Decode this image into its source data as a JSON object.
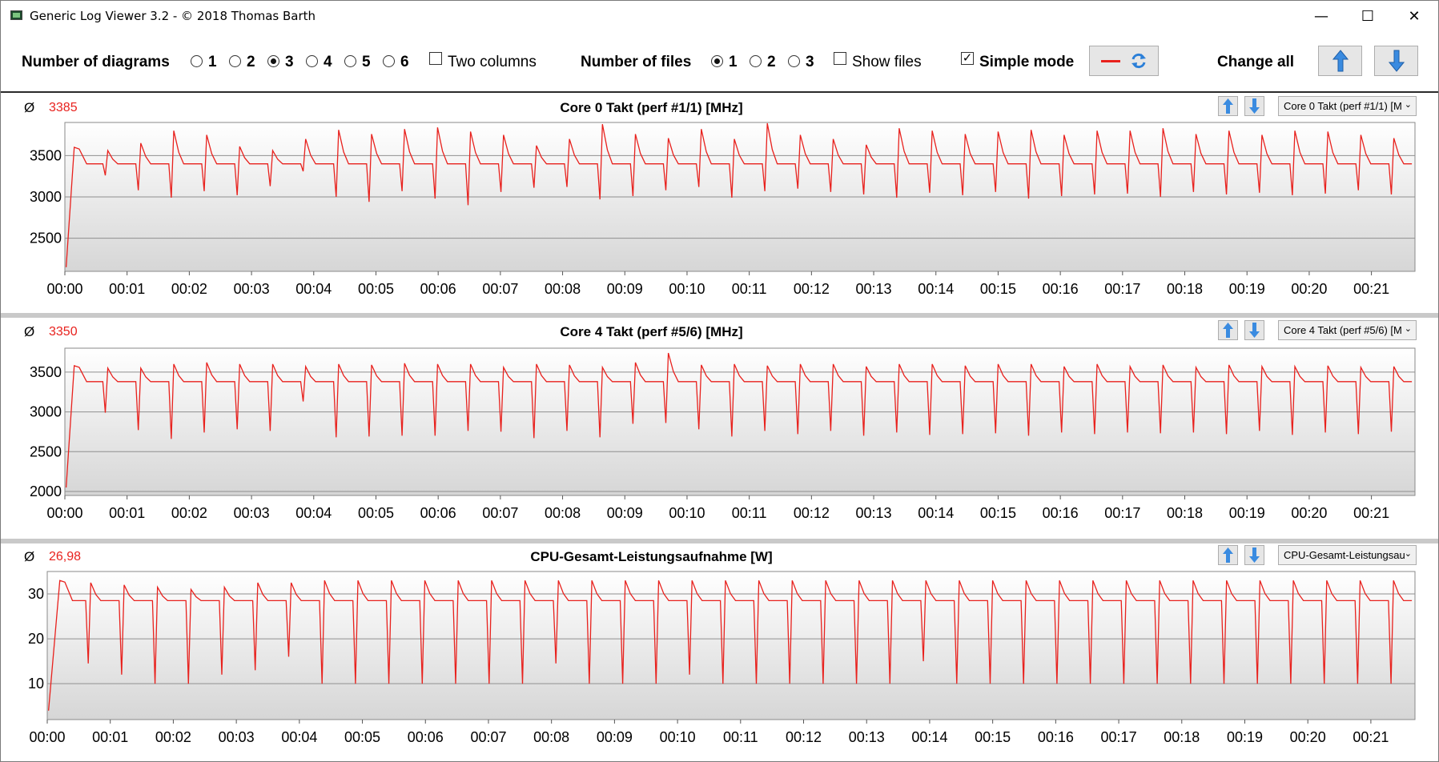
{
  "window": {
    "title": "Generic Log Viewer 3.2 - © 2018 Thomas Barth",
    "minimize": "—",
    "maximize": "☐",
    "close": "✕"
  },
  "toolbar": {
    "diagrams_label": "Number of diagrams",
    "diagram_options": [
      "1",
      "2",
      "3",
      "4",
      "5",
      "6"
    ],
    "diagram_selected": "3",
    "two_columns_label": "Two columns",
    "two_columns_checked": false,
    "files_label": "Number of files",
    "file_options": [
      "1",
      "2",
      "3"
    ],
    "file_selected": "1",
    "show_files_label": "Show files",
    "show_files_checked": false,
    "simple_mode_label": "Simple mode",
    "simple_mode_checked": true,
    "change_all_label": "Change all"
  },
  "colors": {
    "series": "#e8211d",
    "accent_blue": "#3a8be0"
  },
  "time_ticks": [
    "00:00",
    "00:01",
    "00:02",
    "00:03",
    "00:04",
    "00:05",
    "00:06",
    "00:07",
    "00:08",
    "00:09",
    "00:10",
    "00:11",
    "00:12",
    "00:13",
    "00:14",
    "00:15",
    "00:16",
    "00:17",
    "00:18",
    "00:19",
    "00:20",
    "00:21"
  ],
  "panels": [
    {
      "avg_symbol": "Ø",
      "avg_value": "3385",
      "title": "Core 0 Takt (perf #1/1) [MHz]",
      "selector": "Core 0 Takt (perf #1/1) [M"
    },
    {
      "avg_symbol": "Ø",
      "avg_value": "3350",
      "title": "Core 4 Takt (perf #5/6) [MHz]",
      "selector": "Core 4 Takt (perf #5/6) [M"
    },
    {
      "avg_symbol": "Ø",
      "avg_value": "26,98",
      "title": "CPU-Gesamt-Leistungsaufnahme [W]",
      "selector": "CPU-Gesamt-Leistungsau"
    }
  ],
  "chart_data": [
    {
      "type": "line",
      "title": "Core 0 Takt (perf #1/1) [MHz]",
      "x_unit": "minutes",
      "xlim": [
        0,
        21.7
      ],
      "ylim": [
        2100,
        3900
      ],
      "yticks": [
        2500,
        3000,
        3500
      ],
      "base": 3400,
      "start": 2150,
      "ramp_end": 0.15,
      "first_peak": 3600,
      "cycle_minutes": 0.53,
      "phase": 0.65,
      "peaks": [
        3560,
        3650,
        3800,
        3750,
        3610,
        3560,
        3700,
        3810,
        3760,
        3820,
        3840,
        3790,
        3750,
        3620,
        3700,
        3880,
        3760,
        3710,
        3820,
        3700,
        3890,
        3750,
        3700,
        3630,
        3830,
        3800,
        3760,
        3790,
        3810,
        3750,
        3800,
        3800,
        3830,
        3760,
        3800,
        3750,
        3800,
        3790,
        3750,
        3710,
        3800
      ],
      "dips": [
        3260,
        3080,
        2990,
        3070,
        3020,
        3130,
        3310,
        3000,
        2940,
        3070,
        2980,
        2900,
        3060,
        3110,
        3120,
        2970,
        3010,
        3080,
        3120,
        2990,
        3070,
        3100,
        3060,
        3030,
        2990,
        3050,
        3020,
        3060,
        2980,
        3010,
        3030,
        3040,
        3000,
        3060,
        3030,
        3050,
        3020,
        3040,
        3080,
        3030,
        3100
      ],
      "series": [
        {
          "name": "Core 0 Takt (perf #1/1) [MHz]"
        }
      ]
    },
    {
      "type": "line",
      "title": "Core 4 Takt (perf #5/6) [MHz]",
      "x_unit": "minutes",
      "xlim": [
        0,
        21.7
      ],
      "ylim": [
        1950,
        3800
      ],
      "yticks": [
        2000,
        2500,
        3000,
        3500
      ],
      "base": 3380,
      "start": 2050,
      "ramp_end": 0.15,
      "first_peak": 3580,
      "cycle_minutes": 0.53,
      "phase": 0.65,
      "peaks": [
        3550,
        3550,
        3600,
        3620,
        3600,
        3600,
        3570,
        3600,
        3590,
        3610,
        3600,
        3600,
        3560,
        3600,
        3590,
        3560,
        3620,
        3740,
        3590,
        3600,
        3580,
        3600,
        3600,
        3570,
        3600,
        3600,
        3580,
        3600,
        3600,
        3570,
        3600,
        3570,
        3590,
        3560,
        3590,
        3570,
        3570,
        3580,
        3560,
        3570,
        3590
      ],
      "dips": [
        2990,
        2770,
        2660,
        2740,
        2780,
        2760,
        3130,
        2680,
        2690,
        2700,
        2700,
        2760,
        2750,
        2670,
        2760,
        2680,
        2850,
        2860,
        2780,
        2690,
        2760,
        2720,
        2760,
        2700,
        2740,
        2710,
        2720,
        2730,
        2700,
        2740,
        2720,
        2740,
        2730,
        2740,
        2720,
        2760,
        2710,
        2740,
        2720,
        2750,
        2900
      ],
      "series": [
        {
          "name": "Core 4 Takt (perf #5/6) [MHz]"
        }
      ]
    },
    {
      "type": "line",
      "title": "CPU-Gesamt-Leistungsaufnahme [W]",
      "x_unit": "minutes",
      "xlim": [
        0,
        21.7
      ],
      "ylim": [
        2,
        35
      ],
      "yticks": [
        10,
        20,
        30
      ],
      "base": 28.5,
      "start": 4,
      "ramp_end": 0.2,
      "first_peak": 33,
      "cycle_minutes": 0.53,
      "phase": 0.65,
      "peaks": [
        32.5,
        32,
        31.5,
        31,
        31.5,
        32.5,
        32.5,
        33,
        33,
        33,
        33,
        33,
        33,
        33,
        33,
        33,
        33,
        33,
        33,
        33,
        33,
        33,
        33,
        33,
        33,
        33,
        33,
        33,
        33,
        33,
        33,
        33,
        33,
        33,
        33,
        33,
        33,
        33,
        33,
        33,
        33
      ],
      "dips": [
        14.5,
        12,
        10,
        10,
        12,
        13,
        16,
        10,
        10,
        10,
        10,
        10,
        10,
        10,
        14.5,
        10,
        10,
        10,
        12,
        10,
        10,
        10,
        10,
        10,
        10,
        15,
        10,
        10,
        10,
        10,
        10,
        10,
        10,
        10,
        10,
        10,
        10,
        10,
        10,
        10,
        10
      ],
      "series": [
        {
          "name": "CPU-Gesamt-Leistungsaufnahme [W]"
        }
      ]
    }
  ]
}
